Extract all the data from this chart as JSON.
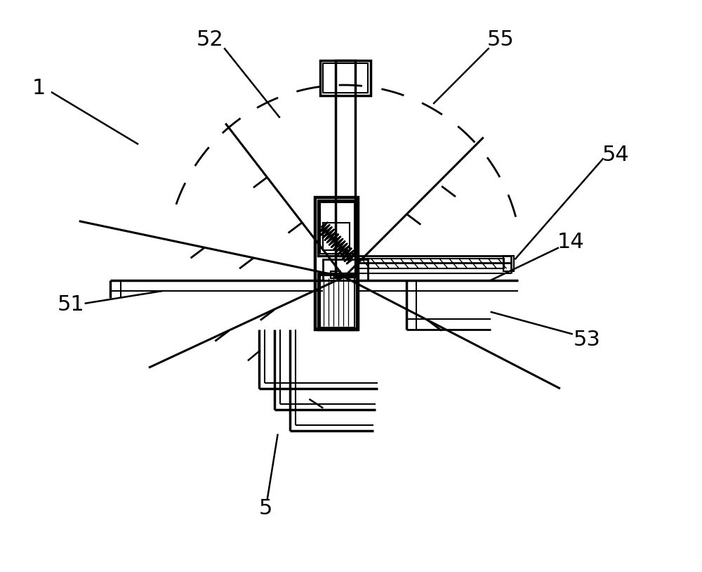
{
  "fig_width": 10.0,
  "fig_height": 8.14,
  "dpi": 100,
  "bg_color": "#ffffff",
  "label_fontsize": 22
}
